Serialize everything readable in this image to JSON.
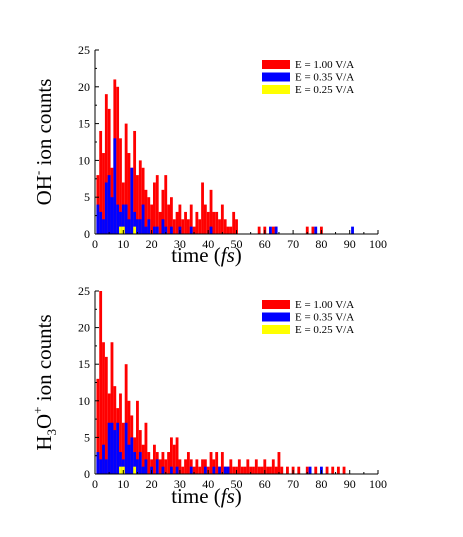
{
  "chart_data": [
    {
      "type": "histogram",
      "ylabel": {
        "main": "OH",
        "sup": "-",
        "rest": " ion counts"
      },
      "xlabel": {
        "pre": "time (",
        "italic": "fs",
        "post": ")"
      },
      "xlim": [
        0,
        100
      ],
      "ylim": [
        0,
        25
      ],
      "xticks": [
        0,
        10,
        20,
        30,
        40,
        50,
        60,
        70,
        80,
        90,
        100
      ],
      "yticks": [
        0,
        5,
        10,
        15,
        20,
        25
      ],
      "bin_width": 1,
      "legend_position": "top-right",
      "series": [
        {
          "name": "E = 1.00 V/A",
          "color": "#ff0000",
          "x": [
            1,
            2,
            3,
            4,
            5,
            6,
            7,
            8,
            9,
            10,
            11,
            12,
            13,
            14,
            15,
            16,
            17,
            18,
            19,
            20,
            21,
            22,
            23,
            24,
            25,
            26,
            27,
            28,
            29,
            30,
            31,
            32,
            33,
            34,
            35,
            36,
            37,
            38,
            39,
            40,
            41,
            42,
            43,
            44,
            45,
            46,
            47,
            48,
            49,
            50,
            58,
            60,
            63,
            64,
            75,
            77,
            80
          ],
          "counts": [
            8,
            14,
            11,
            19,
            17,
            9,
            21,
            20,
            13,
            7,
            15,
            11,
            9,
            14,
            8,
            10,
            9,
            6,
            5,
            4,
            7,
            8,
            3,
            6,
            8,
            4,
            5,
            2,
            3,
            4,
            2,
            3,
            2,
            4,
            1,
            3,
            2,
            7,
            4,
            3,
            6,
            3,
            3,
            2,
            4,
            2,
            1,
            1,
            3,
            2,
            1,
            1,
            1,
            1,
            1,
            1,
            1
          ]
        },
        {
          "name": "E = 0.35 V/A",
          "color": "#0000ff",
          "x": [
            1,
            2,
            3,
            4,
            5,
            6,
            7,
            8,
            9,
            10,
            11,
            12,
            13,
            14,
            15,
            16,
            17,
            18,
            19,
            21,
            22,
            24,
            25,
            27,
            30,
            34,
            41,
            62,
            64,
            78,
            91
          ],
          "counts": [
            4,
            3,
            2,
            7,
            8,
            5,
            13,
            4,
            3,
            4,
            4,
            2,
            9,
            3,
            2,
            2,
            4,
            1,
            2,
            1,
            1,
            2,
            1,
            1,
            1,
            1,
            1,
            1,
            1,
            1,
            1
          ]
        },
        {
          "name": "E = 0.25 V/A",
          "color": "#ffff00",
          "x": [
            9,
            10,
            14
          ],
          "counts": [
            1,
            1,
            1
          ]
        }
      ]
    },
    {
      "type": "histogram",
      "ylabel": {
        "main": "H",
        "sub": "3",
        "main2": "O",
        "sup": "+",
        "rest": " ion counts"
      },
      "xlabel": {
        "pre": "time (",
        "italic": "fs",
        "post": ")"
      },
      "xlim": [
        0,
        100
      ],
      "ylim": [
        0,
        25
      ],
      "xticks": [
        0,
        10,
        20,
        30,
        40,
        50,
        60,
        70,
        80,
        90,
        100
      ],
      "yticks": [
        0,
        5,
        10,
        15,
        20,
        25
      ],
      "bin_width": 1,
      "legend_position": "top-right",
      "series": [
        {
          "name": "E = 1.00 V/A",
          "color": "#ff0000",
          "x": [
            1,
            2,
            3,
            4,
            5,
            6,
            7,
            8,
            9,
            10,
            11,
            12,
            13,
            14,
            15,
            16,
            17,
            18,
            19,
            20,
            21,
            22,
            23,
            24,
            25,
            26,
            27,
            28,
            29,
            30,
            31,
            32,
            33,
            34,
            35,
            36,
            37,
            38,
            39,
            40,
            41,
            42,
            43,
            44,
            45,
            46,
            47,
            48,
            49,
            50,
            51,
            52,
            53,
            54,
            55,
            56,
            57,
            58,
            59,
            60,
            61,
            62,
            63,
            64,
            65,
            66,
            68,
            70,
            72,
            75,
            78,
            82,
            84,
            86,
            88
          ],
          "counts": [
            13,
            25,
            18,
            16,
            11,
            18,
            12,
            9,
            11,
            7,
            15,
            10,
            8,
            5,
            10,
            6,
            4,
            7,
            3,
            2,
            4,
            3,
            2,
            3,
            2,
            3,
            5,
            4,
            5,
            2,
            1,
            2,
            3,
            2,
            1,
            2,
            1,
            2,
            2,
            1,
            3,
            2,
            3,
            1,
            3,
            1,
            1,
            2,
            1,
            1,
            2,
            1,
            1,
            2,
            1,
            1,
            2,
            1,
            1,
            2,
            1,
            1,
            2,
            1,
            3,
            1,
            1,
            1,
            1,
            1,
            1,
            1,
            1,
            1,
            1
          ]
        },
        {
          "name": "E = 0.35 V/A",
          "color": "#0000ff",
          "x": [
            1,
            2,
            3,
            4,
            5,
            6,
            7,
            8,
            9,
            10,
            11,
            12,
            13,
            14,
            15,
            16,
            17,
            18,
            20,
            22,
            24,
            27,
            29,
            34,
            39,
            42,
            44,
            46,
            47,
            76,
            80
          ],
          "counts": [
            3,
            2,
            4,
            2,
            7,
            7,
            6,
            7,
            3,
            2,
            7,
            4,
            5,
            3,
            2,
            3,
            1,
            2,
            1,
            2,
            1,
            1,
            1,
            1,
            1,
            1,
            1,
            1,
            1,
            1,
            1
          ]
        },
        {
          "name": "E = 0.25 V/A",
          "color": "#ffff00",
          "x": [
            9,
            10,
            14
          ],
          "counts": [
            1,
            1,
            1
          ]
        }
      ]
    }
  ]
}
